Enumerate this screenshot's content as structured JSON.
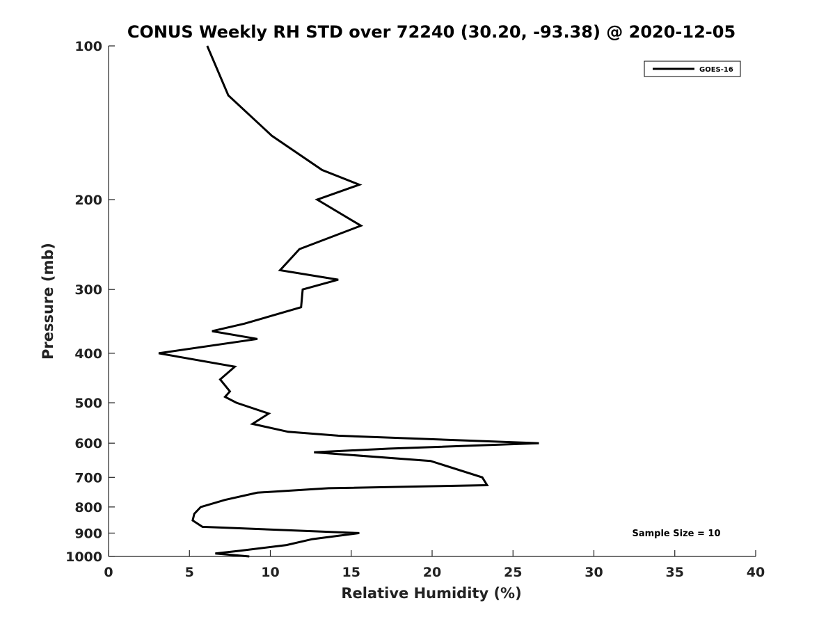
{
  "chart_data": {
    "type": "line",
    "title": "CONUS Weekly RH STD over 72240 (30.20, -93.38) @ 2020-12-05",
    "xlabel": "Relative Humidity (%)",
    "ylabel": "Pressure (mb)",
    "xlim": [
      0,
      40
    ],
    "ylim": [
      100,
      1000
    ],
    "y_scale": "log",
    "y_reversed": true,
    "grid": false,
    "legend_position": "top-right",
    "x_ticks": [
      0,
      5,
      10,
      15,
      20,
      25,
      30,
      35,
      40
    ],
    "y_ticks": [
      100,
      200,
      300,
      400,
      500,
      600,
      700,
      800,
      900,
      1000
    ],
    "annotation": "Sample Size = 10",
    "series": [
      {
        "name": "GOES-16",
        "color": "#000000",
        "points": [
          [
            6.1,
            100
          ],
          [
            7.4,
            125
          ],
          [
            10.1,
            150
          ],
          [
            13.2,
            175
          ],
          [
            15.5,
            187
          ],
          [
            12.9,
            200
          ],
          [
            15.6,
            225
          ],
          [
            11.8,
            250
          ],
          [
            10.6,
            275
          ],
          [
            14.2,
            287
          ],
          [
            12.0,
            300
          ],
          [
            11.9,
            325
          ],
          [
            8.4,
            350
          ],
          [
            6.4,
            362
          ],
          [
            9.2,
            375
          ],
          [
            3.1,
            400
          ],
          [
            7.8,
            425
          ],
          [
            6.9,
            450
          ],
          [
            7.5,
            475
          ],
          [
            7.2,
            487
          ],
          [
            7.9,
            500
          ],
          [
            9.9,
            525
          ],
          [
            8.9,
            550
          ],
          [
            11.1,
            570
          ],
          [
            14.2,
            580
          ],
          [
            26.6,
            600
          ],
          [
            17.3,
            615
          ],
          [
            12.7,
            625
          ],
          [
            19.9,
            650
          ],
          [
            23.1,
            700
          ],
          [
            23.4,
            725
          ],
          [
            13.6,
            735
          ],
          [
            9.2,
            750
          ],
          [
            7.2,
            775
          ],
          [
            5.7,
            800
          ],
          [
            5.3,
            825
          ],
          [
            5.2,
            850
          ],
          [
            5.8,
            875
          ],
          [
            15.5,
            900
          ],
          [
            12.6,
            925
          ],
          [
            11.0,
            950
          ],
          [
            8.1,
            975
          ],
          [
            6.6,
            987
          ],
          [
            8.7,
            1000
          ]
        ]
      }
    ]
  }
}
